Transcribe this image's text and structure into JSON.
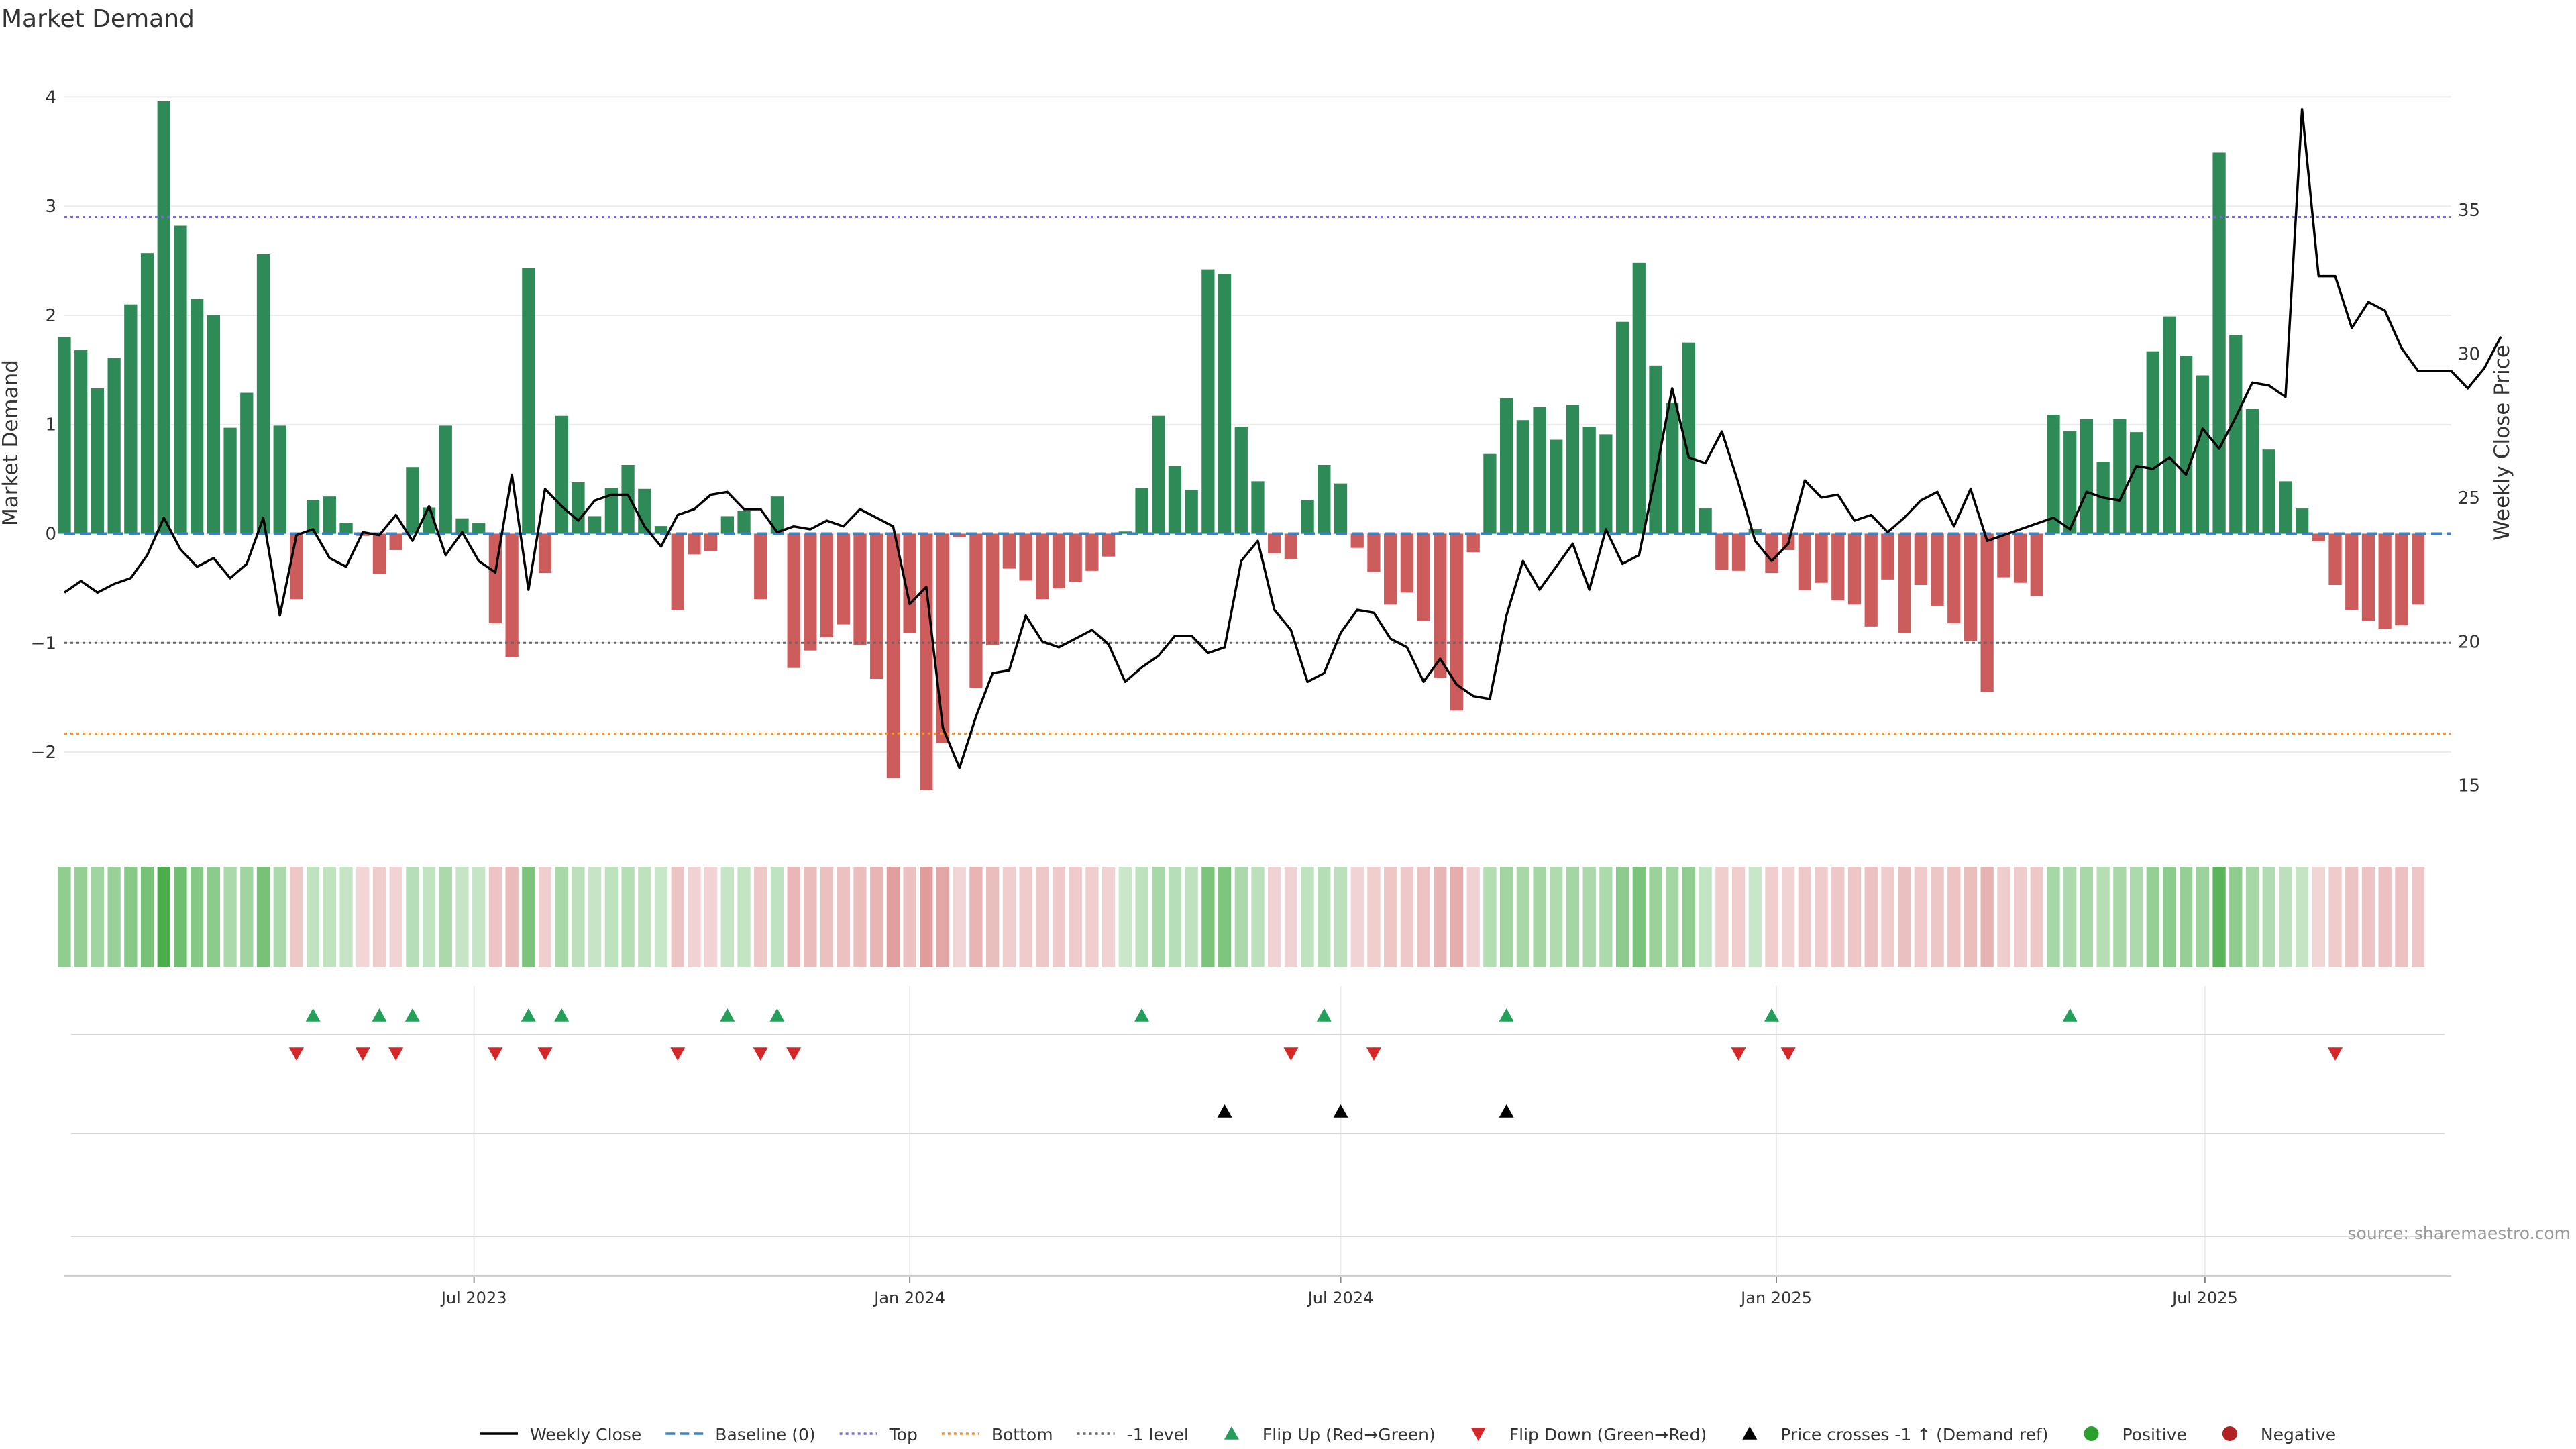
{
  "chart_data": {
    "type": "bar",
    "title": "Market Demand",
    "ylabel": "Market Demand",
    "y2label": "Weekly Close Price",
    "ylim": [
      -2.7,
      4.15
    ],
    "y2lim": [
      13.5,
      39.5
    ],
    "yticks": [
      -2,
      -1,
      0,
      1,
      2,
      3,
      4
    ],
    "y2ticks": [
      15,
      20,
      25,
      30,
      35
    ],
    "x_start": "2023-01-09",
    "x_range": [
      "2023-01-09",
      "2025-10-13"
    ],
    "xticks": [
      {
        "date": "2023-07-01",
        "label": "Jul 2023"
      },
      {
        "date": "2024-01-01",
        "label": "Jan 2024"
      },
      {
        "date": "2024-07-01",
        "label": "Jul 2024"
      },
      {
        "date": "2025-01-01",
        "label": "Jan 2025"
      },
      {
        "date": "2025-07-01",
        "label": "Jul 2025"
      }
    ],
    "reference_lines": [
      {
        "name": "Baseline (0)",
        "value": 0,
        "color": "#3b82c4",
        "dash": "dashed"
      },
      {
        "name": "Top",
        "value": 2.9,
        "color": "#7b6fd1",
        "dash": "dotted"
      },
      {
        "name": "Bottom",
        "value": -1.83,
        "color": "#f28e2b",
        "dash": "dotted"
      },
      {
        "name": "-1 level",
        "value": -1,
        "color": "#666666",
        "dash": "dotted"
      }
    ],
    "demand": [
      1.8,
      1.68,
      1.33,
      1.61,
      2.1,
      2.57,
      3.96,
      2.82,
      2.15,
      2.0,
      0.97,
      1.29,
      2.56,
      0.99,
      -0.6,
      0.31,
      0.34,
      0.1,
      -0.02,
      -0.37,
      -0.15,
      0.61,
      0.24,
      0.99,
      0.14,
      0.1,
      -0.82,
      -1.13,
      2.43,
      -0.36,
      1.08,
      0.47,
      0.16,
      0.42,
      0.63,
      0.41,
      0.07,
      -0.7,
      -0.19,
      -0.16,
      0.16,
      0.21,
      -0.6,
      0.34,
      -1.23,
      -1.07,
      -0.95,
      -0.83,
      -1.02,
      -1.33,
      -2.24,
      -0.91,
      -2.35,
      -1.92,
      -0.03,
      -1.41,
      -1.02,
      -0.32,
      -0.43,
      -0.6,
      -0.5,
      -0.44,
      -0.34,
      -0.21,
      0.02,
      0.42,
      1.08,
      0.62,
      0.4,
      2.42,
      2.38,
      0.98,
      0.48,
      -0.18,
      -0.23,
      0.31,
      0.63,
      0.46,
      -0.13,
      -0.35,
      -0.65,
      -0.54,
      -0.8,
      -1.32,
      -1.62,
      -0.17,
      0.73,
      1.24,
      1.04,
      1.16,
      0.86,
      1.18,
      0.98,
      0.91,
      1.94,
      2.48,
      1.54,
      1.2,
      1.75,
      0.23,
      -0.33,
      -0.34,
      0.04,
      -0.36,
      -0.15,
      -0.52,
      -0.45,
      -0.61,
      -0.65,
      -0.85,
      -0.42,
      -0.91,
      -0.47,
      -0.66,
      -0.82,
      -0.98,
      -1.45,
      -0.4,
      -0.45,
      -0.57,
      1.09,
      0.94,
      1.05,
      0.66,
      1.05,
      0.93,
      1.67,
      1.99,
      1.63,
      1.45,
      3.49,
      1.82,
      1.14,
      0.77,
      0.48,
      0.23,
      -0.07,
      -0.47,
      -0.7,
      -0.8,
      -0.87,
      -0.84,
      -0.65
    ],
    "price": [
      21.7,
      22.1,
      21.7,
      22.0,
      22.2,
      23.0,
      24.3,
      23.2,
      22.6,
      22.9,
      22.2,
      22.7,
      24.3,
      20.9,
      23.7,
      23.9,
      22.9,
      22.6,
      23.8,
      23.7,
      24.4,
      23.5,
      24.7,
      23.0,
      23.8,
      22.8,
      22.4,
      25.8,
      21.8,
      25.3,
      24.7,
      24.2,
      24.9,
      25.1,
      25.1,
      24.0,
      23.3,
      24.4,
      24.6,
      25.1,
      25.2,
      24.6,
      24.6,
      23.8,
      24.0,
      23.9,
      24.2,
      24.0,
      24.6,
      24.3,
      24.0,
      21.3,
      21.9,
      17.0,
      15.6,
      17.4,
      18.9,
      19.0,
      20.9,
      20.0,
      19.8,
      20.1,
      20.4,
      19.9,
      18.6,
      19.1,
      19.5,
      20.2,
      20.2,
      19.6,
      19.8,
      22.8,
      23.5,
      21.1,
      20.4,
      18.6,
      18.9,
      20.3,
      21.1,
      21.0,
      20.1,
      19.8,
      18.6,
      19.4,
      18.5,
      18.1,
      18.0,
      20.9,
      22.8,
      21.8,
      22.6,
      23.4,
      21.8,
      23.9,
      22.7,
      23.0,
      25.8,
      28.8,
      26.4,
      26.2,
      27.3,
      25.5,
      23.5,
      22.8,
      23.4,
      25.6,
      25.0,
      25.1,
      24.2,
      24.4,
      23.8,
      24.3,
      24.9,
      25.2,
      24.0,
      25.3,
      23.5,
      23.7,
      23.9,
      24.1,
      24.3,
      23.9,
      25.2,
      25.0,
      24.9,
      26.1,
      26.0,
      26.4,
      25.8,
      27.4,
      26.7,
      27.8,
      29.0,
      28.9,
      28.5,
      38.5,
      32.7,
      32.7,
      30.9,
      31.8,
      31.5,
      30.2,
      29.4,
      29.4,
      29.4,
      28.8,
      29.5,
      30.6
    ],
    "signals": {
      "flip_up_weeks": [
        15,
        19,
        21,
        28,
        30,
        40,
        43,
        65,
        76,
        87,
        103,
        121
      ],
      "flip_down_weeks": [
        14,
        18,
        20,
        26,
        29,
        37,
        42,
        44,
        74,
        79,
        101,
        104,
        137
      ],
      "price_cross_weeks": [
        70,
        77,
        87
      ]
    },
    "legend": [
      {
        "label": "Weekly Close",
        "kind": "line",
        "color": "#000000"
      },
      {
        "label": "Baseline (0)",
        "kind": "dash",
        "color": "#3b82c4"
      },
      {
        "label": "Top",
        "kind": "dot",
        "color": "#7b6fd1"
      },
      {
        "label": "Bottom",
        "kind": "dot",
        "color": "#f28e2b"
      },
      {
        "label": "-1 level",
        "kind": "dot",
        "color": "#666666"
      },
      {
        "label": "Flip Up (Red→Green)",
        "kind": "tri-up",
        "color": "#22a05a"
      },
      {
        "label": "Flip Down (Green→Red)",
        "kind": "tri-down",
        "color": "#d62728"
      },
      {
        "label": "Price crosses -1 ↑ (Demand ref)",
        "kind": "tri-up",
        "color": "#000000"
      },
      {
        "label": "Positive",
        "kind": "circle",
        "color": "#2ca02c"
      },
      {
        "label": "Negative",
        "kind": "circle",
        "color": "#b22222"
      }
    ],
    "source": "source: sharemaestro.com",
    "colors": {
      "positive_bar": "#2e8b57",
      "negative_bar": "#cd5c5c",
      "heat_positive": "#2ca02c",
      "heat_negative": "#cd5c5c",
      "flip_up": "#22a05a",
      "flip_down": "#d62728",
      "price_line": "#000000"
    }
  }
}
